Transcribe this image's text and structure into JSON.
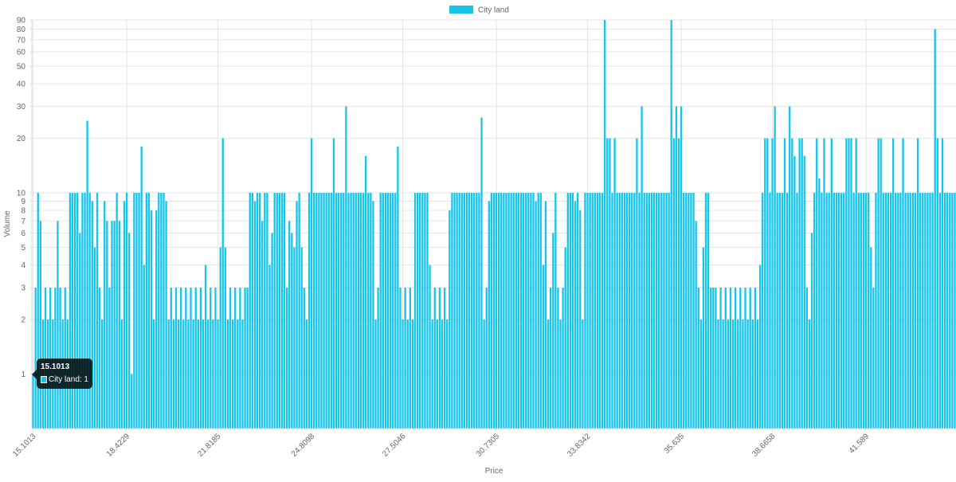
{
  "chart_data": {
    "type": "bar",
    "legend": {
      "label": "City land",
      "position": "top",
      "color": "#17c5eb"
    },
    "xlabel": "Price",
    "ylabel": "Volume",
    "yscale": "log",
    "ylim": [
      0.5,
      90
    ],
    "y_ticks": [
      "1",
      "2",
      "3",
      "4",
      "5",
      "6",
      "7",
      "8",
      "9",
      "10",
      "20",
      "30",
      "40",
      "50",
      "60",
      "70",
      "80",
      "90"
    ],
    "x_ticks": [
      "15.1013",
      "18.4229",
      "21.8185",
      "24.8098",
      "27.5046",
      "30.7305",
      "33.8342",
      "35.635",
      "38.6658",
      "41.589"
    ],
    "bar_color": "#17c5eb",
    "series": [
      {
        "name": "City land",
        "values": [
          1,
          3,
          10,
          7,
          2,
          3,
          2,
          3,
          2,
          3,
          7,
          3,
          2,
          3,
          2,
          10,
          10,
          10,
          10,
          6,
          10,
          10,
          25,
          10,
          9,
          5,
          10,
          3,
          2,
          9,
          7,
          3,
          7,
          7,
          10,
          7,
          2,
          9,
          10,
          6,
          1,
          10,
          10,
          10,
          18,
          4,
          10,
          10,
          8,
          2,
          8,
          10,
          10,
          10,
          9,
          2,
          3,
          2,
          3,
          2,
          3,
          2,
          3,
          2,
          3,
          2,
          3,
          2,
          3,
          2,
          4,
          2,
          3,
          2,
          3,
          2,
          5,
          20,
          5,
          2,
          3,
          2,
          3,
          2,
          3,
          2,
          3,
          3,
          10,
          10,
          9,
          10,
          10,
          7,
          10,
          10,
          4,
          6,
          10,
          10,
          10,
          10,
          10,
          3,
          7,
          6,
          5,
          9,
          10,
          5,
          3,
          2,
          10,
          20,
          10,
          10,
          10,
          10,
          10,
          10,
          10,
          10,
          20,
          10,
          10,
          10,
          10,
          30,
          10,
          10,
          10,
          10,
          10,
          10,
          10,
          16,
          10,
          10,
          9,
          2,
          3,
          10,
          10,
          10,
          10,
          10,
          10,
          10,
          18,
          3,
          2,
          3,
          2,
          3,
          2,
          10,
          10,
          10,
          10,
          10,
          10,
          4,
          2,
          3,
          2,
          3,
          2,
          3,
          2,
          8,
          10,
          10,
          10,
          10,
          10,
          10,
          10,
          10,
          10,
          10,
          10,
          10,
          26,
          2,
          3,
          9,
          10,
          10,
          10,
          10,
          10,
          10,
          10,
          10,
          10,
          10,
          10,
          10,
          10,
          10,
          10,
          10,
          10,
          10,
          9,
          10,
          10,
          4,
          9,
          2,
          3,
          6,
          10,
          3,
          2,
          3,
          5,
          10,
          10,
          10,
          9,
          10,
          8,
          2,
          10,
          10,
          10,
          10,
          10,
          10,
          10,
          10,
          90,
          20,
          20,
          10,
          20,
          10,
          10,
          10,
          10,
          10,
          10,
          10,
          10,
          20,
          10,
          30,
          10,
          10,
          10,
          10,
          10,
          10,
          10,
          10,
          10,
          10,
          10,
          90,
          20,
          30,
          20,
          30,
          10,
          10,
          10,
          10,
          10,
          7,
          3,
          2,
          5,
          10,
          10,
          3,
          3,
          3,
          2,
          3,
          2,
          3,
          2,
          3,
          2,
          3,
          2,
          3,
          2,
          3,
          2,
          3,
          2,
          3,
          2,
          4,
          10,
          20,
          20,
          10,
          20,
          30,
          10,
          10,
          10,
          20,
          10,
          30,
          20,
          16,
          10,
          20,
          20,
          16,
          3,
          2,
          6,
          10,
          20,
          12,
          10,
          20,
          10,
          10,
          20,
          10,
          10,
          10,
          10,
          10,
          20,
          20,
          20,
          10,
          20,
          10,
          10,
          10,
          10,
          10,
          5,
          3,
          10,
          20,
          20,
          10,
          10,
          10,
          10,
          20,
          10,
          10,
          10,
          20,
          10,
          10,
          10,
          10,
          10,
          20,
          10,
          10,
          10,
          10,
          10,
          10,
          80,
          20,
          10,
          20,
          10,
          10,
          10,
          10,
          10
        ]
      }
    ],
    "tooltip": {
      "title": "15.1013",
      "label": "City land: 1"
    }
  }
}
